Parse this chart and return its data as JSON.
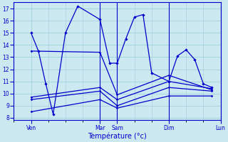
{
  "xlabel": "Température (°c)",
  "background_color": "#cce8f0",
  "line_color": "#0000cc",
  "grid_color": "#99ccd8",
  "yticks": [
    8,
    9,
    10,
    11,
    12,
    13,
    14,
    15,
    16,
    17
  ],
  "ylim": [
    7.8,
    17.5
  ],
  "xlim": [
    0,
    168
  ],
  "day_positions": [
    14,
    70,
    84,
    126,
    168
  ],
  "day_labels": [
    "Ven",
    "Mar",
    "Sam",
    "Dim",
    "Lun"
  ],
  "vlines": [
    70,
    84,
    126,
    168
  ],
  "line1_x": [
    14,
    20,
    26,
    32,
    42,
    52,
    70,
    78,
    84,
    91,
    98,
    105,
    112,
    126,
    133,
    140,
    147,
    154,
    161
  ],
  "line1_y": [
    15,
    13.5,
    10.8,
    8.3,
    15.0,
    17.2,
    16.1,
    12.5,
    12.5,
    14.5,
    16.3,
    16.5,
    11.7,
    11.0,
    13.1,
    13.6,
    12.8,
    10.8,
    10.5
  ],
  "line2_x": [
    14,
    70,
    84,
    126,
    161
  ],
  "line2_y": [
    13.5,
    13.4,
    9.9,
    11.5,
    10.3
  ],
  "line3_x": [
    14,
    70,
    84,
    126,
    161
  ],
  "line3_y": [
    9.7,
    10.5,
    9.5,
    11.0,
    10.4
  ],
  "line4_x": [
    14,
    70,
    84,
    126,
    161
  ],
  "line4_y": [
    9.5,
    10.2,
    9.0,
    10.5,
    10.2
  ],
  "line5_x": [
    14,
    70,
    84,
    126,
    161
  ],
  "line5_y": [
    8.5,
    9.5,
    8.8,
    9.8,
    9.8
  ]
}
